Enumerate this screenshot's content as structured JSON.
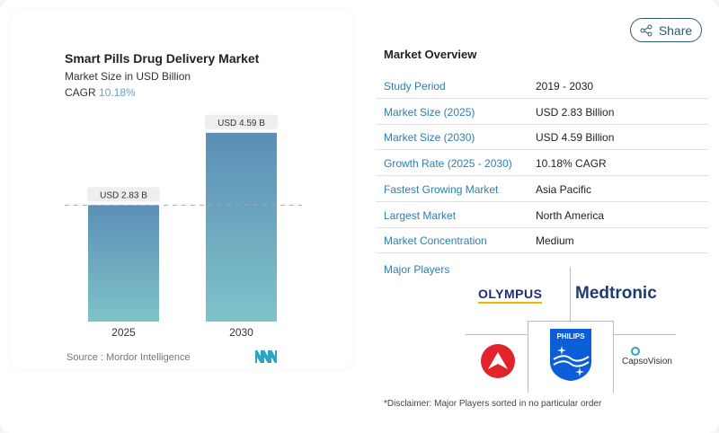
{
  "chart_data": {
    "type": "bar",
    "title": "Smart Pills Drug Delivery Market",
    "subtitle": "Market Size in USD Billion",
    "cagr_label": "CAGR",
    "cagr_value": "10.18%",
    "categories": [
      "2025",
      "2030"
    ],
    "values": [
      2.83,
      4.59
    ],
    "data_labels": [
      "USD 2.83 B",
      "USD 4.59 B"
    ],
    "colors": {
      "top": "#5b8fb6",
      "bottom": "#7fc3c9"
    },
    "reference_line": "dashed at 2025 value",
    "grid": false
  },
  "source": "Source :  Mordor Intelligence",
  "logo": "Mordor Intelligence logo",
  "share_label": "Share",
  "overview": {
    "title": "Market Overview",
    "rows": [
      {
        "k": "Study Period",
        "v": "2019 - 2030"
      },
      {
        "k": "Market Size (2025)",
        "v": "USD 2.83 Billion"
      },
      {
        "k": "Market Size (2030)",
        "v": "USD 4.59 Billion"
      },
      {
        "k": "Growth Rate (2025 - 2030)",
        "v": "10.18% CAGR"
      },
      {
        "k": "Fastest Growing Market",
        "v": "Asia Pacific"
      },
      {
        "k": "Largest Market",
        "v": "North America"
      },
      {
        "k": "Market Concentration",
        "v": "Medium"
      }
    ]
  },
  "players": {
    "title": "Major Players",
    "logos": [
      "OLYMPUS",
      "Medtronic",
      "PHILIPS",
      "CapsoVision",
      "red triangle logo"
    ]
  },
  "disclaimer": "*Disclaimer: Major Players sorted in no particular order"
}
